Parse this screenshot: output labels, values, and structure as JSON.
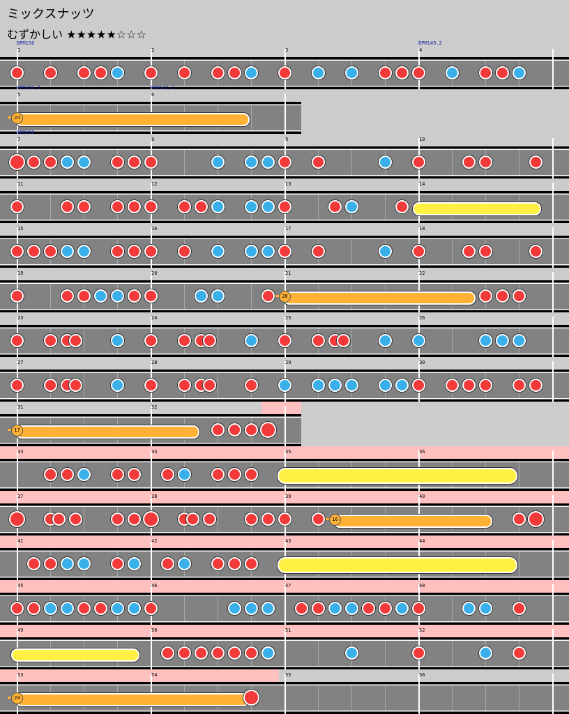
{
  "song": {
    "title": "ミックスナッツ",
    "difficulty_label": "むずかしい",
    "stars": "★★★★★☆☆☆",
    "star_level": 5,
    "star_max": 8
  },
  "colors": {
    "don": "#f23a3a",
    "ka": "#3ab0ea",
    "drumroll": "#fff144",
    "balloon": "#ffb136",
    "gogo": "#ffc0c0",
    "lane": "#828282",
    "bpm_text": "#1a2aa8"
  },
  "rows": [
    {
      "measures": [
        "1",
        "2",
        "3",
        "4"
      ],
      "bpm": [
        {
          "label": "BPM150",
          "measure": 0
        },
        {
          "label": "BPM149.2",
          "measure": 3
        }
      ],
      "notes": [
        [
          "d",
          0
        ],
        [
          "d",
          2
        ],
        [
          "d",
          4
        ],
        [
          "d",
          5
        ],
        [
          "k",
          6
        ],
        [
          "d",
          8
        ],
        [
          "d",
          10
        ],
        [
          "d",
          12
        ],
        [
          "d",
          13
        ],
        [
          "k",
          14
        ],
        [
          "d",
          16
        ],
        [
          "k",
          18
        ],
        [
          "k",
          20
        ],
        [
          "d",
          22
        ],
        [
          "d",
          23
        ],
        [
          "d",
          24
        ],
        [
          "k",
          26
        ],
        [
          "d",
          28
        ],
        [
          "d",
          29
        ],
        [
          "k",
          30
        ]
      ]
    },
    {
      "measures": [
        "5",
        "6"
      ],
      "partial": true,
      "bpm": [
        {
          "label": "BPM153.2",
          "measure": 0
        },
        {
          "label": "BPM147.4",
          "measure": 1
        }
      ],
      "balloons": [
        {
          "count": "24",
          "start": 0,
          "end": 13.5
        }
      ]
    },
    {
      "measures": [
        "7",
        "8",
        "9",
        "10"
      ],
      "bpm": [
        {
          "label": "BPM150",
          "measure": 0
        }
      ],
      "notes": [
        [
          "D",
          0
        ],
        [
          "d",
          1
        ],
        [
          "d",
          2
        ],
        [
          "k",
          3
        ],
        [
          "k",
          4
        ],
        [
          "d",
          6
        ],
        [
          "d",
          7
        ],
        [
          "d",
          8
        ],
        [
          "k",
          12
        ],
        [
          "k",
          14
        ],
        [
          "k",
          15
        ],
        [
          "d",
          16
        ],
        [
          "d",
          18
        ],
        [
          "k",
          22
        ],
        [
          "d",
          24
        ],
        [
          "d",
          27
        ],
        [
          "d",
          28
        ],
        [
          "d",
          31
        ]
      ]
    },
    {
      "measures": [
        "11",
        "12",
        "13",
        "14"
      ],
      "notes": [
        [
          "d",
          0
        ],
        [
          "d",
          3
        ],
        [
          "d",
          4
        ],
        [
          "d",
          6
        ],
        [
          "d",
          7
        ],
        [
          "d",
          8
        ],
        [
          "d",
          10
        ],
        [
          "d",
          11
        ],
        [
          "k",
          12
        ],
        [
          "k",
          14
        ],
        [
          "k",
          15
        ],
        [
          "d",
          16
        ],
        [
          "d",
          19
        ],
        [
          "k",
          20
        ],
        [
          "d",
          23
        ]
      ],
      "rolls": [
        {
          "start": 24,
          "end": 31,
          "big": false
        }
      ]
    },
    {
      "measures": [
        "15",
        "16",
        "17",
        "18"
      ],
      "notes": [
        [
          "d",
          0
        ],
        [
          "d",
          1
        ],
        [
          "d",
          2
        ],
        [
          "k",
          3
        ],
        [
          "k",
          4
        ],
        [
          "d",
          6
        ],
        [
          "d",
          7
        ],
        [
          "d",
          8
        ],
        [
          "d",
          10
        ],
        [
          "k",
          12
        ],
        [
          "k",
          14
        ],
        [
          "k",
          15
        ],
        [
          "d",
          16
        ],
        [
          "d",
          18
        ],
        [
          "k",
          22
        ],
        [
          "d",
          24
        ],
        [
          "d",
          27
        ],
        [
          "d",
          28
        ],
        [
          "d",
          31
        ]
      ]
    },
    {
      "measures": [
        "19",
        "20",
        "21",
        "22"
      ],
      "notes": [
        [
          "d",
          0
        ],
        [
          "d",
          3
        ],
        [
          "d",
          4
        ],
        [
          "k",
          5
        ],
        [
          "k",
          6
        ],
        [
          "d",
          7
        ],
        [
          "d",
          8
        ],
        [
          "k",
          11
        ],
        [
          "k",
          12
        ],
        [
          "d",
          15
        ],
        [
          "d",
          28
        ],
        [
          "d",
          29
        ],
        [
          "d",
          30
        ]
      ],
      "balloons": [
        {
          "count": "20",
          "start": 16,
          "end": 27
        }
      ]
    },
    {
      "measures": [
        "23",
        "24",
        "25",
        "26"
      ],
      "notes": [
        [
          "d",
          0
        ],
        [
          "d",
          2
        ],
        [
          "d",
          3
        ],
        [
          "d",
          3.5
        ],
        [
          "k",
          6
        ],
        [
          "d",
          8
        ],
        [
          "d",
          10
        ],
        [
          "d",
          11
        ],
        [
          "d",
          11.5
        ],
        [
          "k",
          14
        ],
        [
          "d",
          16
        ],
        [
          "d",
          18
        ],
        [
          "d",
          19
        ],
        [
          "d",
          19.5
        ],
        [
          "k",
          22
        ],
        [
          "k",
          24
        ],
        [
          "k",
          28
        ],
        [
          "k",
          29
        ],
        [
          "k",
          30
        ]
      ]
    },
    {
      "measures": [
        "27",
        "28",
        "29",
        "30"
      ],
      "notes": [
        [
          "d",
          0
        ],
        [
          "d",
          2
        ],
        [
          "d",
          3
        ],
        [
          "d",
          3.5
        ],
        [
          "k",
          6
        ],
        [
          "d",
          8
        ],
        [
          "d",
          10
        ],
        [
          "d",
          11
        ],
        [
          "d",
          11.5
        ],
        [
          "d",
          14
        ],
        [
          "k",
          16
        ],
        [
          "k",
          18
        ],
        [
          "k",
          19
        ],
        [
          "k",
          20
        ],
        [
          "k",
          22
        ],
        [
          "k",
          23
        ],
        [
          "d",
          24
        ],
        [
          "d",
          26
        ],
        [
          "d",
          27
        ],
        [
          "d",
          28
        ],
        [
          "d",
          30
        ],
        [
          "d",
          31
        ]
      ]
    },
    {
      "measures": [
        "31",
        "32"
      ],
      "partial": true,
      "gogo_from": 15,
      "notes": [
        [
          "d",
          12
        ],
        [
          "d",
          13
        ],
        [
          "d",
          14
        ],
        [
          "D",
          15
        ]
      ],
      "balloons": [
        {
          "count": "17",
          "start": 0,
          "end": 10.5
        }
      ]
    },
    {
      "measures": [
        "33",
        "34",
        "35",
        "36"
      ],
      "gogo_from": 0,
      "notes": [
        [
          "d",
          2
        ],
        [
          "d",
          3
        ],
        [
          "k",
          4
        ],
        [
          "d",
          6
        ],
        [
          "d",
          7
        ],
        [
          "d",
          9
        ],
        [
          "k",
          10
        ],
        [
          "d",
          12
        ],
        [
          "d",
          13
        ],
        [
          "d",
          14
        ]
      ],
      "rolls": [
        {
          "start": 16,
          "end": 29.5,
          "big": true
        }
      ]
    },
    {
      "measures": [
        "37",
        "38",
        "39",
        "40"
      ],
      "gogo_from": 0,
      "notes": [
        [
          "D",
          0
        ],
        [
          "d",
          2
        ],
        [
          "d",
          2.5
        ],
        [
          "d",
          3.5
        ],
        [
          "d",
          6
        ],
        [
          "d",
          7
        ],
        [
          "D",
          8
        ],
        [
          "d",
          10
        ],
        [
          "d",
          10.5
        ],
        [
          "d",
          11.5
        ],
        [
          "d",
          14
        ],
        [
          "d",
          15
        ],
        [
          "d",
          16
        ],
        [
          "d",
          18
        ],
        [
          "d",
          30
        ],
        [
          "D",
          31
        ]
      ],
      "balloons": [
        {
          "count": "16",
          "start": 19,
          "end": 28
        }
      ]
    },
    {
      "measures": [
        "41",
        "42",
        "43",
        "44"
      ],
      "gogo_from": 0,
      "notes": [
        [
          "d",
          1
        ],
        [
          "d",
          2
        ],
        [
          "k",
          3
        ],
        [
          "k",
          4
        ],
        [
          "d",
          6
        ],
        [
          "k",
          7
        ],
        [
          "d",
          9
        ],
        [
          "k",
          10
        ],
        [
          "d",
          12
        ],
        [
          "d",
          13
        ],
        [
          "d",
          14
        ]
      ],
      "rolls": [
        {
          "start": 16,
          "end": 29.5,
          "big": true
        }
      ]
    },
    {
      "measures": [
        "45",
        "46",
        "47",
        "48"
      ],
      "gogo_from": 0,
      "notes": [
        [
          "d",
          0
        ],
        [
          "d",
          1
        ],
        [
          "k",
          2
        ],
        [
          "k",
          3
        ],
        [
          "d",
          4
        ],
        [
          "d",
          5
        ],
        [
          "k",
          6
        ],
        [
          "k",
          7
        ],
        [
          "d",
          8
        ],
        [
          "k",
          13
        ],
        [
          "k",
          14
        ],
        [
          "k",
          15
        ],
        [
          "d",
          17
        ],
        [
          "d",
          18
        ],
        [
          "k",
          19
        ],
        [
          "k",
          20
        ],
        [
          "d",
          21
        ],
        [
          "d",
          22
        ],
        [
          "k",
          23
        ],
        [
          "d",
          24
        ],
        [
          "k",
          27
        ],
        [
          "k",
          28
        ],
        [
          "d",
          30
        ]
      ]
    },
    {
      "measures": [
        "49",
        "50",
        "51",
        "52"
      ],
      "gogo_from": 0,
      "notes": [
        [
          "d",
          9
        ],
        [
          "d",
          10
        ],
        [
          "d",
          11
        ],
        [
          "d",
          12
        ],
        [
          "d",
          13
        ],
        [
          "d",
          14
        ],
        [
          "k",
          15
        ],
        [
          "k",
          20
        ],
        [
          "d",
          24
        ],
        [
          "k",
          28
        ],
        [
          "d",
          30
        ]
      ],
      "rolls": [
        {
          "start": 0,
          "end": 7,
          "big": false
        }
      ]
    },
    {
      "measures": [
        "53",
        "54",
        "55",
        "56"
      ],
      "gogo_to": 16,
      "notes": [
        [
          "D",
          14
        ]
      ],
      "balloons": [
        {
          "count": "24",
          "start": 0,
          "end": 13.5
        }
      ]
    }
  ]
}
